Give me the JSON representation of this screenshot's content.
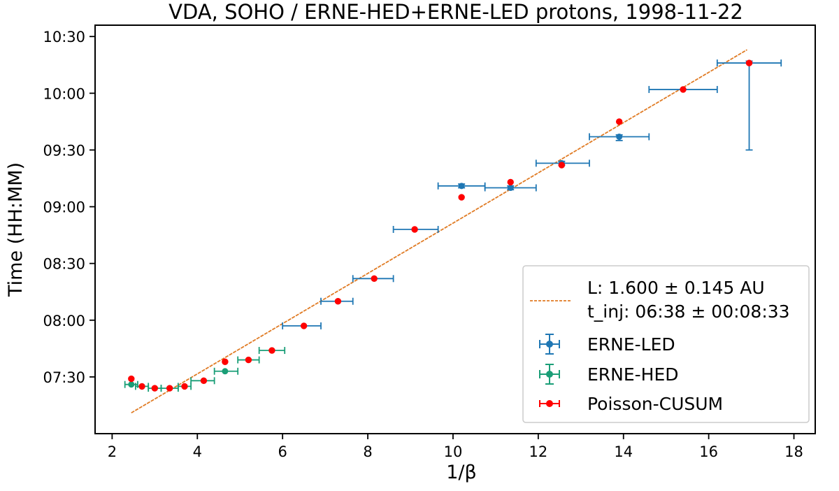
{
  "chart_data": {
    "type": "scatter",
    "title": "VDA, SOHO / ERNE-HED+ERNE-LED protons, 1998-11-22",
    "xlabel": "1/β",
    "ylabel": "Time (HH:MM)",
    "xlim": [
      1.6,
      18.5
    ],
    "ylim": [
      "07:00",
      "10:36"
    ],
    "x_ticks": [
      2,
      4,
      6,
      8,
      10,
      12,
      14,
      16,
      18
    ],
    "y_ticks": [
      "07:30",
      "08:00",
      "08:30",
      "09:00",
      "09:30",
      "10:00",
      "10:30"
    ],
    "grid": false,
    "legend_position": "lower-right",
    "fit_line": {
      "label_lines": [
        "L: 1.600 ± 0.145 AU",
        "t_inj: 06:38 ± 00:08:33"
      ],
      "color": "#e07b24",
      "x": [
        2.45,
        16.9
      ],
      "y": [
        "07:11",
        "10:23"
      ]
    },
    "series": [
      {
        "name": "ERNE-LED",
        "color": "#1f77b4",
        "points": [
          {
            "x": 6.5,
            "xerr": [
              6.0,
              6.9
            ],
            "y": "07:57",
            "ylo": "07:57",
            "yhi": "07:57"
          },
          {
            "x": 7.3,
            "xerr": [
              6.9,
              7.65
            ],
            "y": "08:10",
            "ylo": "08:10",
            "yhi": "08:10"
          },
          {
            "x": 8.15,
            "xerr": [
              7.65,
              8.6
            ],
            "y": "08:22",
            "ylo": "08:22",
            "yhi": "08:22"
          },
          {
            "x": 9.1,
            "xerr": [
              8.6,
              9.65
            ],
            "y": "08:48",
            "ylo": "08:48",
            "yhi": "08:48"
          },
          {
            "x": 10.2,
            "xerr": [
              9.65,
              10.75
            ],
            "y": "09:11",
            "ylo": "09:10",
            "yhi": "09:12"
          },
          {
            "x": 11.35,
            "xerr": [
              10.75,
              11.95
            ],
            "y": "09:10",
            "ylo": "09:09",
            "yhi": "09:11"
          },
          {
            "x": 12.55,
            "xerr": [
              11.95,
              13.2
            ],
            "y": "09:23",
            "ylo": "09:22",
            "yhi": "09:24"
          },
          {
            "x": 13.9,
            "xerr": [
              13.2,
              14.6
            ],
            "y": "09:37",
            "ylo": "09:35",
            "yhi": "09:38"
          },
          {
            "x": 15.4,
            "xerr": [
              14.6,
              16.2
            ],
            "y": "10:02",
            "ylo": "10:02",
            "yhi": "10:02"
          },
          {
            "x": 16.95,
            "xerr": [
              16.2,
              17.7
            ],
            "y": "10:16",
            "ylo": "09:30",
            "yhi": "10:17"
          }
        ]
      },
      {
        "name": "ERNE-HED",
        "color": "#1a9e77",
        "points": [
          {
            "x": 2.45,
            "xerr": [
              2.3,
              2.6
            ],
            "y": "07:26",
            "ylo": "07:26",
            "yhi": "07:26"
          },
          {
            "x": 2.7,
            "xerr": [
              2.55,
              2.85
            ],
            "y": "07:25",
            "ylo": "07:25",
            "yhi": "07:25"
          },
          {
            "x": 3.0,
            "xerr": [
              2.85,
              3.15
            ],
            "y": "07:24",
            "ylo": "07:24",
            "yhi": "07:24"
          },
          {
            "x": 3.35,
            "xerr": [
              3.15,
              3.55
            ],
            "y": "07:24",
            "ylo": "07:24",
            "yhi": "07:24"
          },
          {
            "x": 3.7,
            "xerr": [
              3.55,
              3.85
            ],
            "y": "07:25",
            "ylo": "07:25",
            "yhi": "07:25"
          },
          {
            "x": 4.15,
            "xerr": [
              3.85,
              4.4
            ],
            "y": "07:28",
            "ylo": "07:28",
            "yhi": "07:28"
          },
          {
            "x": 4.65,
            "xerr": [
              4.4,
              4.95
            ],
            "y": "07:33",
            "ylo": "07:33",
            "yhi": "07:33"
          },
          {
            "x": 5.2,
            "xerr": [
              4.95,
              5.45
            ],
            "y": "07:39",
            "ylo": "07:39",
            "yhi": "07:39"
          },
          {
            "x": 5.75,
            "xerr": [
              5.45,
              6.05
            ],
            "y": "07:44",
            "ylo": "07:44",
            "yhi": "07:44"
          }
        ]
      },
      {
        "name": "Poisson-CUSUM",
        "color": "#ff0000",
        "points": [
          {
            "x": 2.45,
            "y": "07:29"
          },
          {
            "x": 2.7,
            "y": "07:25"
          },
          {
            "x": 3.0,
            "y": "07:24"
          },
          {
            "x": 3.35,
            "y": "07:24"
          },
          {
            "x": 3.7,
            "y": "07:25"
          },
          {
            "x": 4.15,
            "y": "07:28"
          },
          {
            "x": 4.65,
            "y": "07:38"
          },
          {
            "x": 5.2,
            "y": "07:39"
          },
          {
            "x": 5.75,
            "y": "07:44"
          },
          {
            "x": 6.5,
            "y": "07:57"
          },
          {
            "x": 7.3,
            "y": "08:10"
          },
          {
            "x": 8.15,
            "y": "08:22"
          },
          {
            "x": 9.1,
            "y": "08:48"
          },
          {
            "x": 10.2,
            "y": "09:05"
          },
          {
            "x": 11.35,
            "y": "09:13"
          },
          {
            "x": 12.55,
            "y": "09:22"
          },
          {
            "x": 13.9,
            "y": "09:45"
          },
          {
            "x": 15.4,
            "y": "10:02"
          },
          {
            "x": 16.95,
            "y": "10:16"
          }
        ]
      }
    ]
  }
}
